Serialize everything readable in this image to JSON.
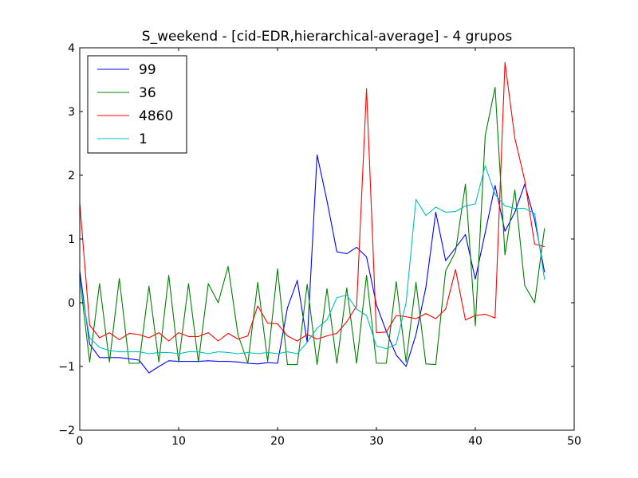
{
  "chart_data": {
    "type": "line",
    "title": "S_weekend - [cid-EDR,hierarchical-average] - 4 grupos",
    "xlabel": "",
    "ylabel": "",
    "xlim": [
      0,
      50
    ],
    "ylim": [
      -2,
      4
    ],
    "x_ticks": [
      0,
      10,
      20,
      30,
      40,
      50
    ],
    "y_ticks": [
      -2,
      -1,
      0,
      1,
      2,
      3,
      4
    ],
    "grid": false,
    "legend_position": "top-left",
    "x": [
      0,
      1,
      2,
      3,
      4,
      5,
      6,
      7,
      8,
      9,
      10,
      11,
      12,
      13,
      14,
      15,
      16,
      17,
      18,
      19,
      20,
      21,
      22,
      23,
      24,
      25,
      26,
      27,
      28,
      29,
      30,
      31,
      32,
      33,
      34,
      35,
      36,
      37,
      38,
      39,
      40,
      41,
      42,
      43,
      44,
      45,
      46,
      47
    ],
    "series": [
      {
        "name": "99",
        "color": "#0000ff",
        "values": [
          0.5,
          -0.65,
          -0.86,
          -0.86,
          -0.86,
          -0.88,
          -0.9,
          -1.1,
          -1.0,
          -0.91,
          -0.92,
          -0.92,
          -0.92,
          -0.91,
          -0.92,
          -0.92,
          -0.93,
          -0.95,
          -0.96,
          -0.94,
          -0.95,
          -0.08,
          0.35,
          -0.62,
          2.32,
          1.6,
          0.8,
          0.77,
          0.87,
          0.72,
          -0.03,
          -0.45,
          -0.82,
          -1.0,
          -0.5,
          0.24,
          1.42,
          0.66,
          0.86,
          1.07,
          0.37,
          1.1,
          1.84,
          1.12,
          1.42,
          1.86,
          1.3,
          0.48
        ]
      },
      {
        "name": "36",
        "color": "#008000",
        "values": [
          0.4,
          -0.93,
          0.3,
          -0.93,
          0.38,
          -0.95,
          -0.95,
          0.26,
          -0.93,
          0.43,
          -0.93,
          0.3,
          -0.93,
          0.3,
          0.0,
          0.57,
          -0.5,
          -0.95,
          0.32,
          -0.92,
          0.53,
          -0.97,
          -0.97,
          0.29,
          -0.97,
          0.22,
          -0.95,
          0.23,
          -0.95,
          0.43,
          -0.95,
          -0.95,
          0.33,
          -0.93,
          0.32,
          -0.96,
          -0.97,
          0.5,
          0.8,
          1.86,
          -0.36,
          2.62,
          3.38,
          0.75,
          1.77,
          0.27,
          0.0,
          1.17
        ]
      },
      {
        "name": "4860",
        "color": "#ff0000",
        "values": [
          1.57,
          -0.35,
          -0.55,
          -0.47,
          -0.58,
          -0.48,
          -0.5,
          -0.55,
          -0.47,
          -0.6,
          -0.47,
          -0.53,
          -0.53,
          -0.47,
          -0.6,
          -0.48,
          -0.57,
          -0.52,
          -0.05,
          -0.32,
          -0.33,
          -0.52,
          -0.6,
          -0.5,
          -0.57,
          -0.52,
          -0.48,
          -0.3,
          -0.05,
          3.36,
          -0.47,
          -0.46,
          -0.2,
          -0.22,
          -0.25,
          -0.17,
          -0.25,
          -0.1,
          0.52,
          -0.27,
          -0.2,
          -0.18,
          -0.24,
          3.77,
          2.58,
          1.92,
          0.92,
          0.88
        ]
      },
      {
        "name": "1",
        "color": "#00bfbf",
        "values": [
          0.35,
          -0.55,
          -0.7,
          -0.75,
          -0.77,
          -0.77,
          -0.77,
          -0.8,
          -0.78,
          -0.78,
          -0.8,
          -0.77,
          -0.77,
          -0.8,
          -0.77,
          -0.78,
          -0.8,
          -0.78,
          -0.8,
          -0.78,
          -0.8,
          -0.77,
          -0.8,
          -0.62,
          -0.4,
          -0.27,
          0.08,
          0.12,
          -0.1,
          -0.2,
          -0.68,
          -0.72,
          -0.65,
          0.0,
          1.62,
          1.37,
          1.5,
          1.42,
          1.43,
          1.52,
          1.55,
          2.15,
          1.7,
          1.52,
          1.48,
          1.48,
          1.4,
          0.36
        ]
      }
    ]
  }
}
